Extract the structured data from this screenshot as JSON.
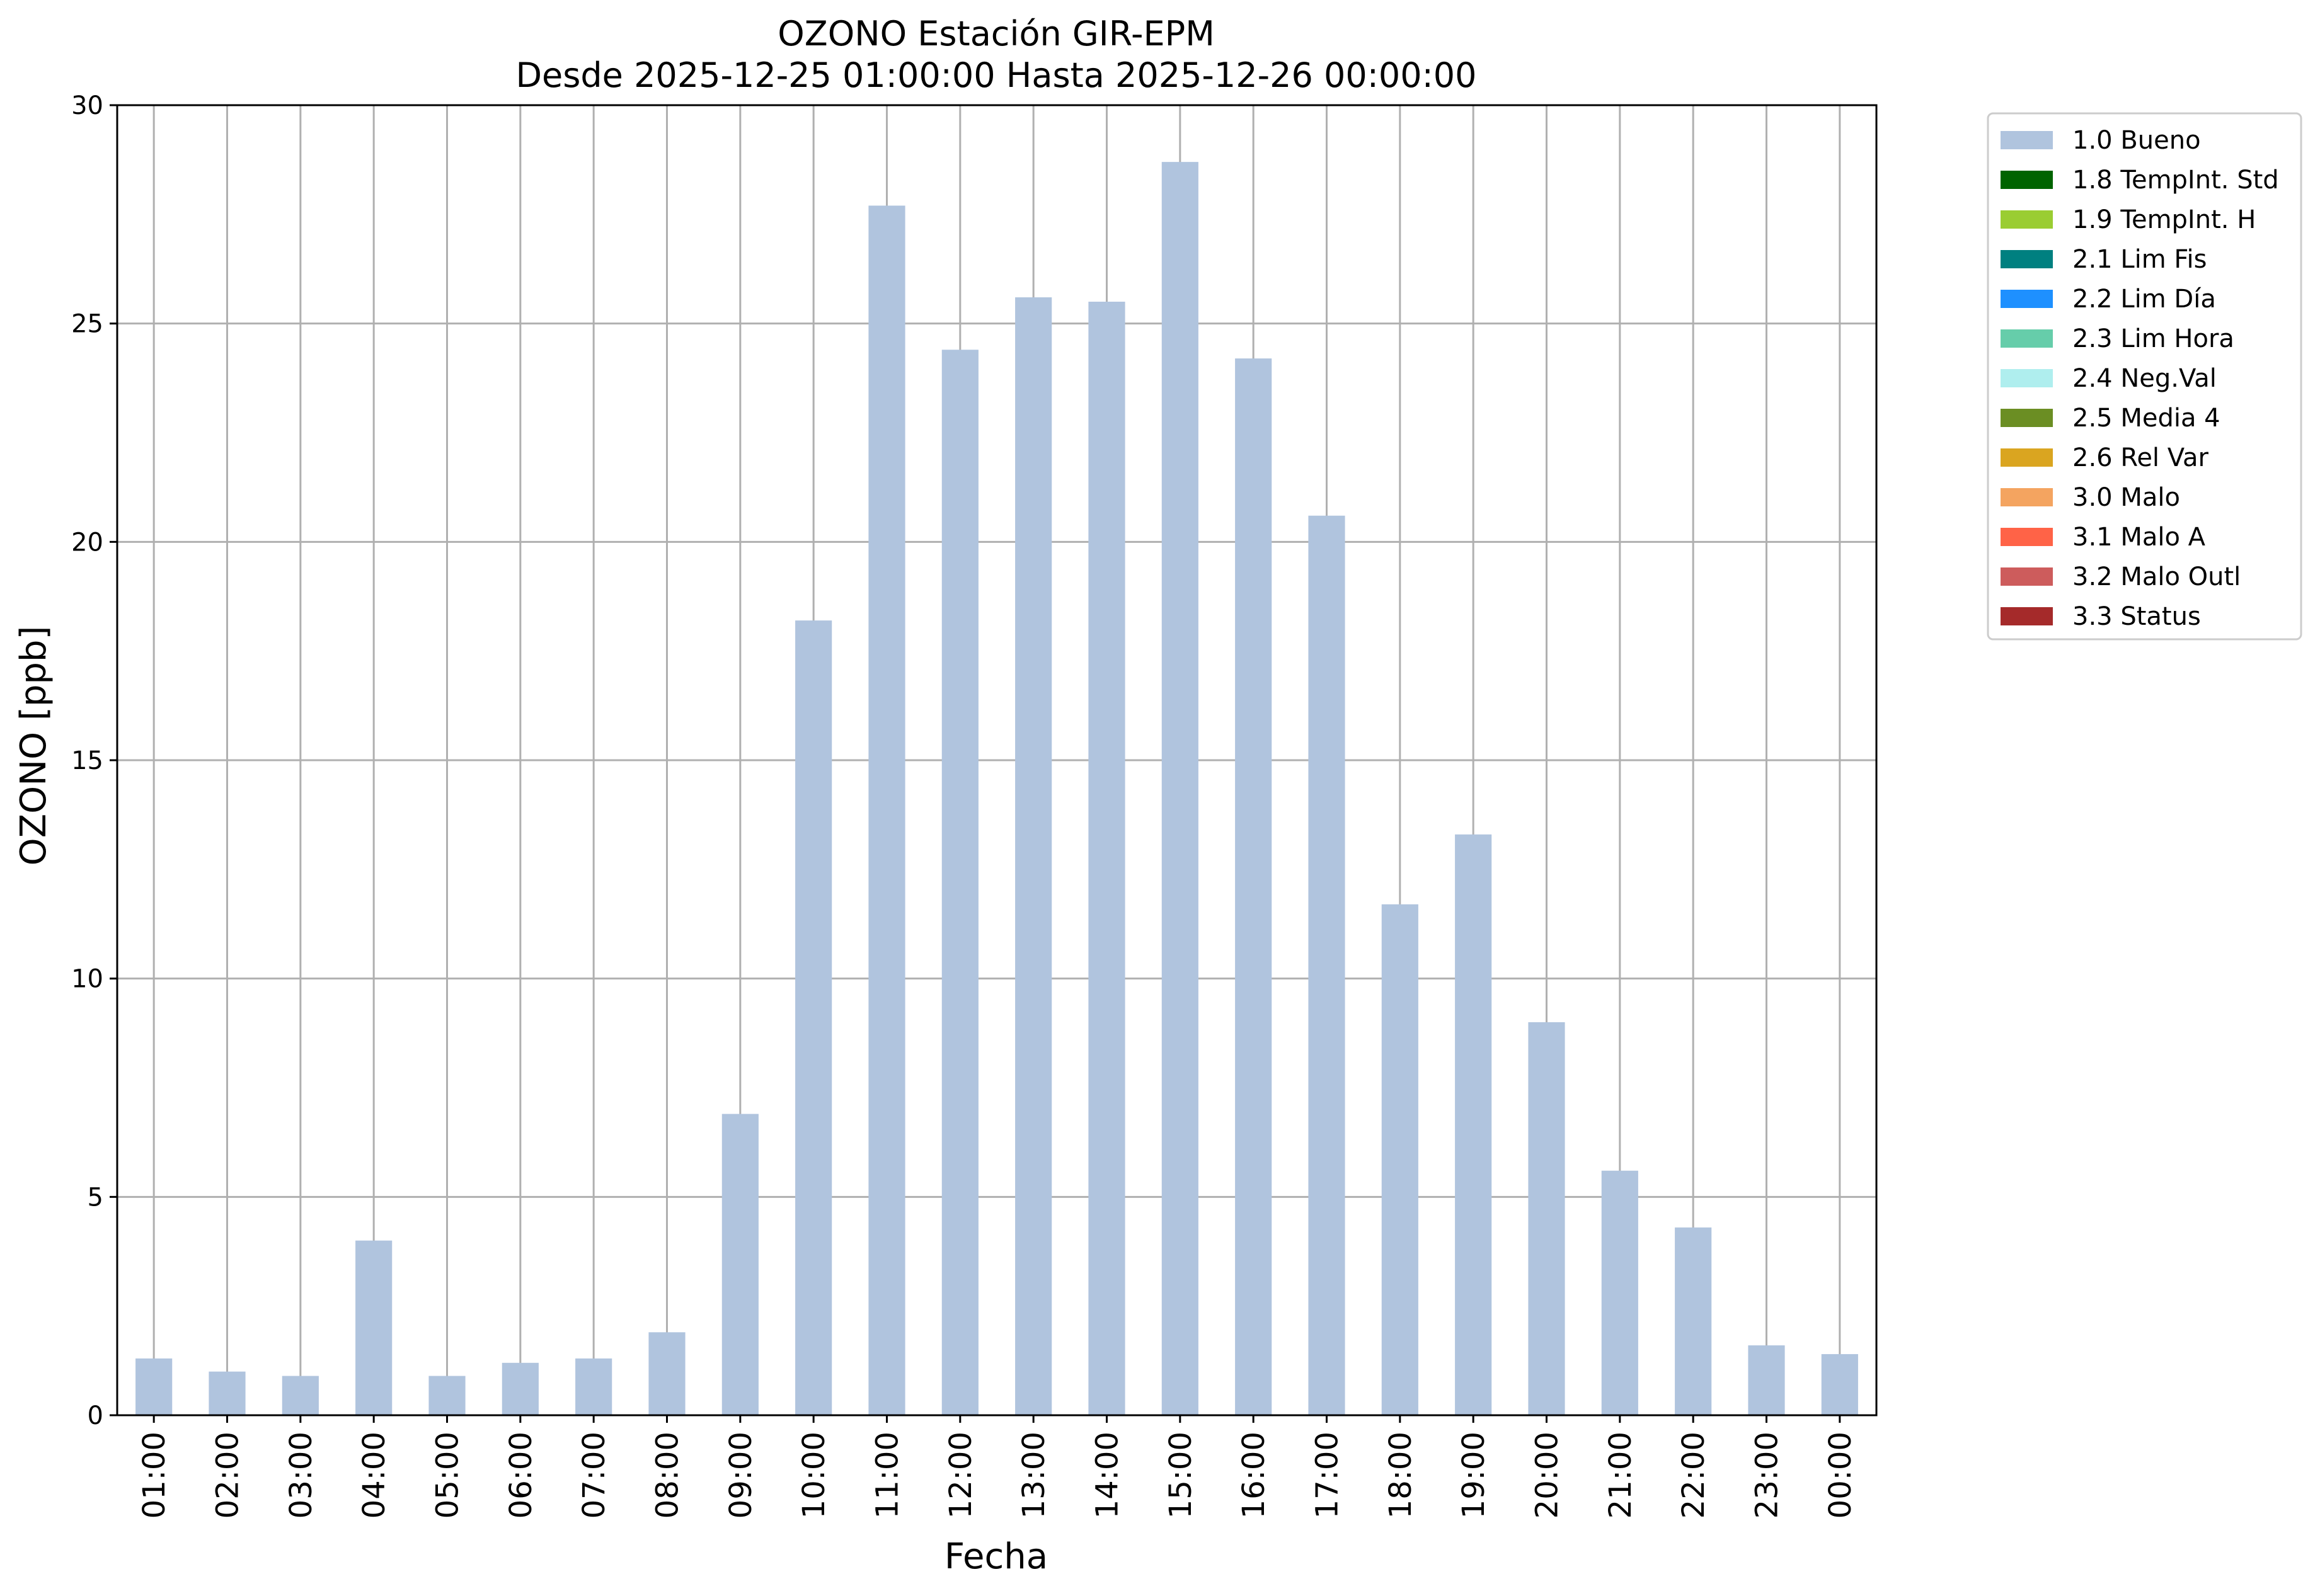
{
  "chart_data": {
    "type": "bar",
    "title": "OZONO Estación GIR-EPM",
    "subtitle": "Desde 2025-12-25 01:00:00 Hasta 2025-12-26 00:00:00",
    "xlabel": "Fecha",
    "ylabel": "OZONO [ppb]",
    "ylim": [
      0,
      30
    ],
    "yticks": [
      "0",
      "5",
      "10",
      "15",
      "20",
      "25",
      "30"
    ],
    "grid": true,
    "legend_position": "outside-top-right",
    "categories": [
      "01:00",
      "02:00",
      "03:00",
      "04:00",
      "05:00",
      "06:00",
      "07:00",
      "08:00",
      "09:00",
      "10:00",
      "11:00",
      "12:00",
      "13:00",
      "14:00",
      "15:00",
      "16:00",
      "17:00",
      "18:00",
      "19:00",
      "20:00",
      "21:00",
      "22:00",
      "23:00",
      "00:00"
    ],
    "series": [
      {
        "name": "1.0 Bueno",
        "color": "#b0c4de",
        "values": [
          1.3,
          1.0,
          0.9,
          4.0,
          0.9,
          1.2,
          1.3,
          1.9,
          6.9,
          18.2,
          27.7,
          24.4,
          25.6,
          25.5,
          28.7,
          24.2,
          20.6,
          11.7,
          13.3,
          9.0,
          5.6,
          4.3,
          1.6,
          1.4
        ]
      }
    ],
    "legend": [
      {
        "label": "1.0 Bueno",
        "color": "#b0c4de"
      },
      {
        "label": "1.8 TempInt. Std",
        "color": "#006400"
      },
      {
        "label": "1.9 TempInt. H",
        "color": "#9acd32"
      },
      {
        "label": "2.1 Lim Fis",
        "color": "#008080"
      },
      {
        "label": "2.2 Lim Día",
        "color": "#1e90ff"
      },
      {
        "label": "2.3 Lim Hora",
        "color": "#66cdaa"
      },
      {
        "label": "2.4 Neg.Val",
        "color": "#afeeee"
      },
      {
        "label": "2.5 Media 4",
        "color": "#6b8e23"
      },
      {
        "label": "2.6 Rel Var",
        "color": "#daa520"
      },
      {
        "label": "3.0 Malo",
        "color": "#f4a460"
      },
      {
        "label": "3.1 Malo A",
        "color": "#ff6347"
      },
      {
        "label": "3.2 Malo Outl",
        "color": "#cd5c5c"
      },
      {
        "label": "3.3 Status",
        "color": "#a52a2a"
      }
    ]
  }
}
